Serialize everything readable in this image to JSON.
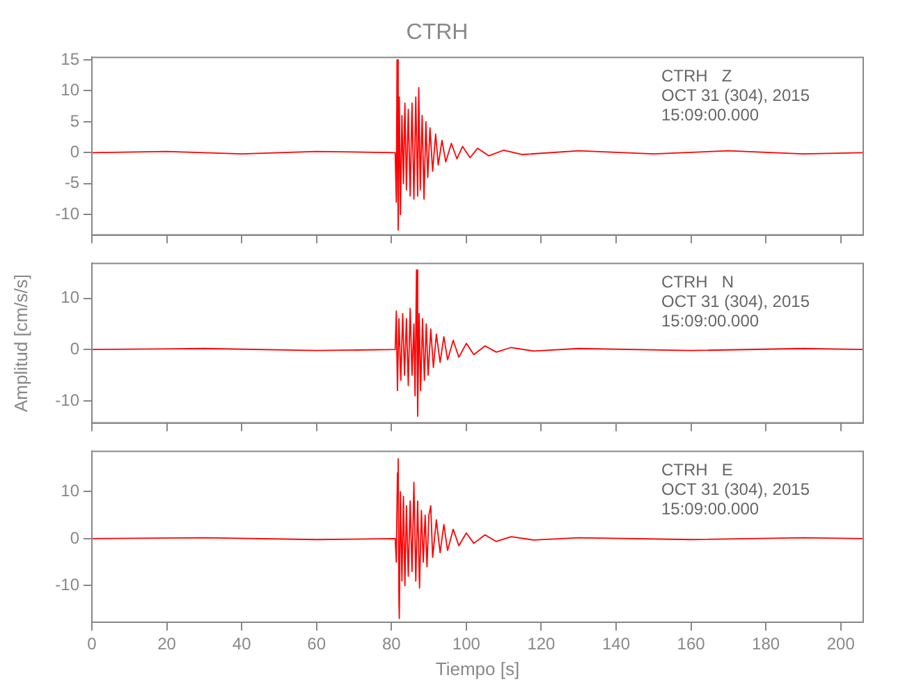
{
  "chart_data": [
    {
      "type": "line",
      "title": "CTRH",
      "annotations": [
        "CTRH   Z",
        "OCT 31 (304), 2015",
        "15:09:00.000"
      ],
      "x": [
        0,
        20,
        40,
        60,
        81,
        81.3,
        81.5,
        81.8,
        82.1,
        82.4,
        82.8,
        83.2,
        83.6,
        84,
        84.5,
        85,
        85.5,
        86,
        86.5,
        87,
        87.3,
        87.7,
        88.2,
        88.7,
        89.2,
        89.7,
        90.3,
        91,
        91.8,
        92.5,
        93.5,
        94.5,
        96,
        97.5,
        99,
        101,
        103,
        106,
        110,
        115,
        130,
        150,
        170,
        190,
        206
      ],
      "series": [
        {
          "color": "#ff0000",
          "values": [
            0,
            0.2,
            -0.2,
            0.2,
            0,
            -8,
            15,
            -12.5,
            9,
            -10,
            6,
            -5,
            8,
            -6,
            7,
            -7,
            8,
            -7.5,
            9,
            -7,
            10.5,
            -6,
            6,
            -7.5,
            5,
            -4,
            4,
            -3,
            3,
            -2,
            2,
            -1.5,
            1.5,
            -1,
            1,
            -0.8,
            0.7,
            -0.5,
            0.4,
            -0.3,
            0.3,
            -0.2,
            0.3,
            -0.2,
            0
          ]
        }
      ],
      "xlim": [
        0,
        206
      ],
      "xticks": [
        0,
        20,
        40,
        60,
        80,
        100,
        120,
        140,
        160,
        180,
        200
      ],
      "ylim": [
        -13.3,
        15.4
      ],
      "yticks": [
        -10,
        -5,
        0,
        5,
        10,
        15
      ],
      "tick_labels": "y"
    },
    {
      "type": "line",
      "ylabel": "Amplitud [cm/s/s]",
      "annotations": [
        "CTRH   N",
        "OCT 31 (304), 2015",
        "15:09:00.000"
      ],
      "x": [
        0,
        30,
        60,
        81,
        81.3,
        81.6,
        82,
        82.5,
        83,
        83.5,
        84,
        84.5,
        85,
        85.5,
        86,
        86.3,
        86.7,
        87,
        87.4,
        87.8,
        88.3,
        88.8,
        89.3,
        89.8,
        90.5,
        91.2,
        92,
        93,
        94,
        95,
        96.5,
        98,
        100,
        102,
        105,
        108,
        112,
        118,
        130,
        160,
        190,
        206
      ],
      "series": [
        {
          "color": "#ff0000",
          "values": [
            0,
            0.2,
            -0.2,
            0,
            7.5,
            -8,
            6,
            -6,
            7,
            -5,
            6,
            -7,
            8,
            -5,
            5,
            -9,
            15.5,
            -13,
            7,
            -8,
            6,
            -6,
            5,
            -5,
            4,
            -3.5,
            3,
            -2.5,
            2.5,
            -2,
            1.8,
            -1.5,
            1.2,
            -1,
            0.7,
            -0.5,
            0.4,
            -0.3,
            0.2,
            -0.2,
            0.2,
            0
          ]
        }
      ],
      "xlim": [
        0,
        206
      ],
      "xticks": [
        0,
        20,
        40,
        60,
        80,
        100,
        120,
        140,
        160,
        180,
        200
      ],
      "ylim": [
        -14.3,
        16.8
      ],
      "yticks": [
        -10,
        0,
        10
      ],
      "tick_labels": "y"
    },
    {
      "type": "line",
      "xlabel": "Tiempo [s]",
      "annotations": [
        "CTRH   E",
        "OCT 31 (304), 2015",
        "15:09:00.000"
      ],
      "x": [
        0,
        30,
        60,
        81,
        81.3,
        81.6,
        81.8,
        82,
        82.1,
        82.4,
        82.8,
        83.2,
        83.6,
        84,
        84.5,
        85,
        85.5,
        86,
        86.5,
        87,
        87.5,
        88,
        88.5,
        89,
        89.5,
        90,
        90.5,
        91,
        92,
        93,
        94,
        95,
        96.5,
        98,
        100,
        102,
        105,
        108,
        112,
        118,
        130,
        160,
        190,
        206
      ],
      "series": [
        {
          "color": "#ff0000",
          "values": [
            0,
            0.2,
            -0.2,
            0,
            -5,
            14,
            17,
            -13,
            -17,
            10,
            -9,
            9,
            -10,
            7,
            -8,
            8,
            -7,
            12,
            -9,
            8,
            -10.5,
            6,
            -5,
            5,
            -6,
            5,
            7,
            -4,
            4,
            -3,
            3,
            -2.5,
            2,
            -1.5,
            1.2,
            -1,
            0.8,
            -0.6,
            0.4,
            -0.3,
            0.2,
            -0.2,
            0.2,
            0
          ]
        }
      ],
      "xlim": [
        0,
        206
      ],
      "xticks": [
        0,
        20,
        40,
        60,
        80,
        100,
        120,
        140,
        160,
        180,
        200
      ],
      "ylim": [
        -17.8,
        18.6
      ],
      "yticks": [
        -10,
        0,
        10
      ]
    }
  ]
}
